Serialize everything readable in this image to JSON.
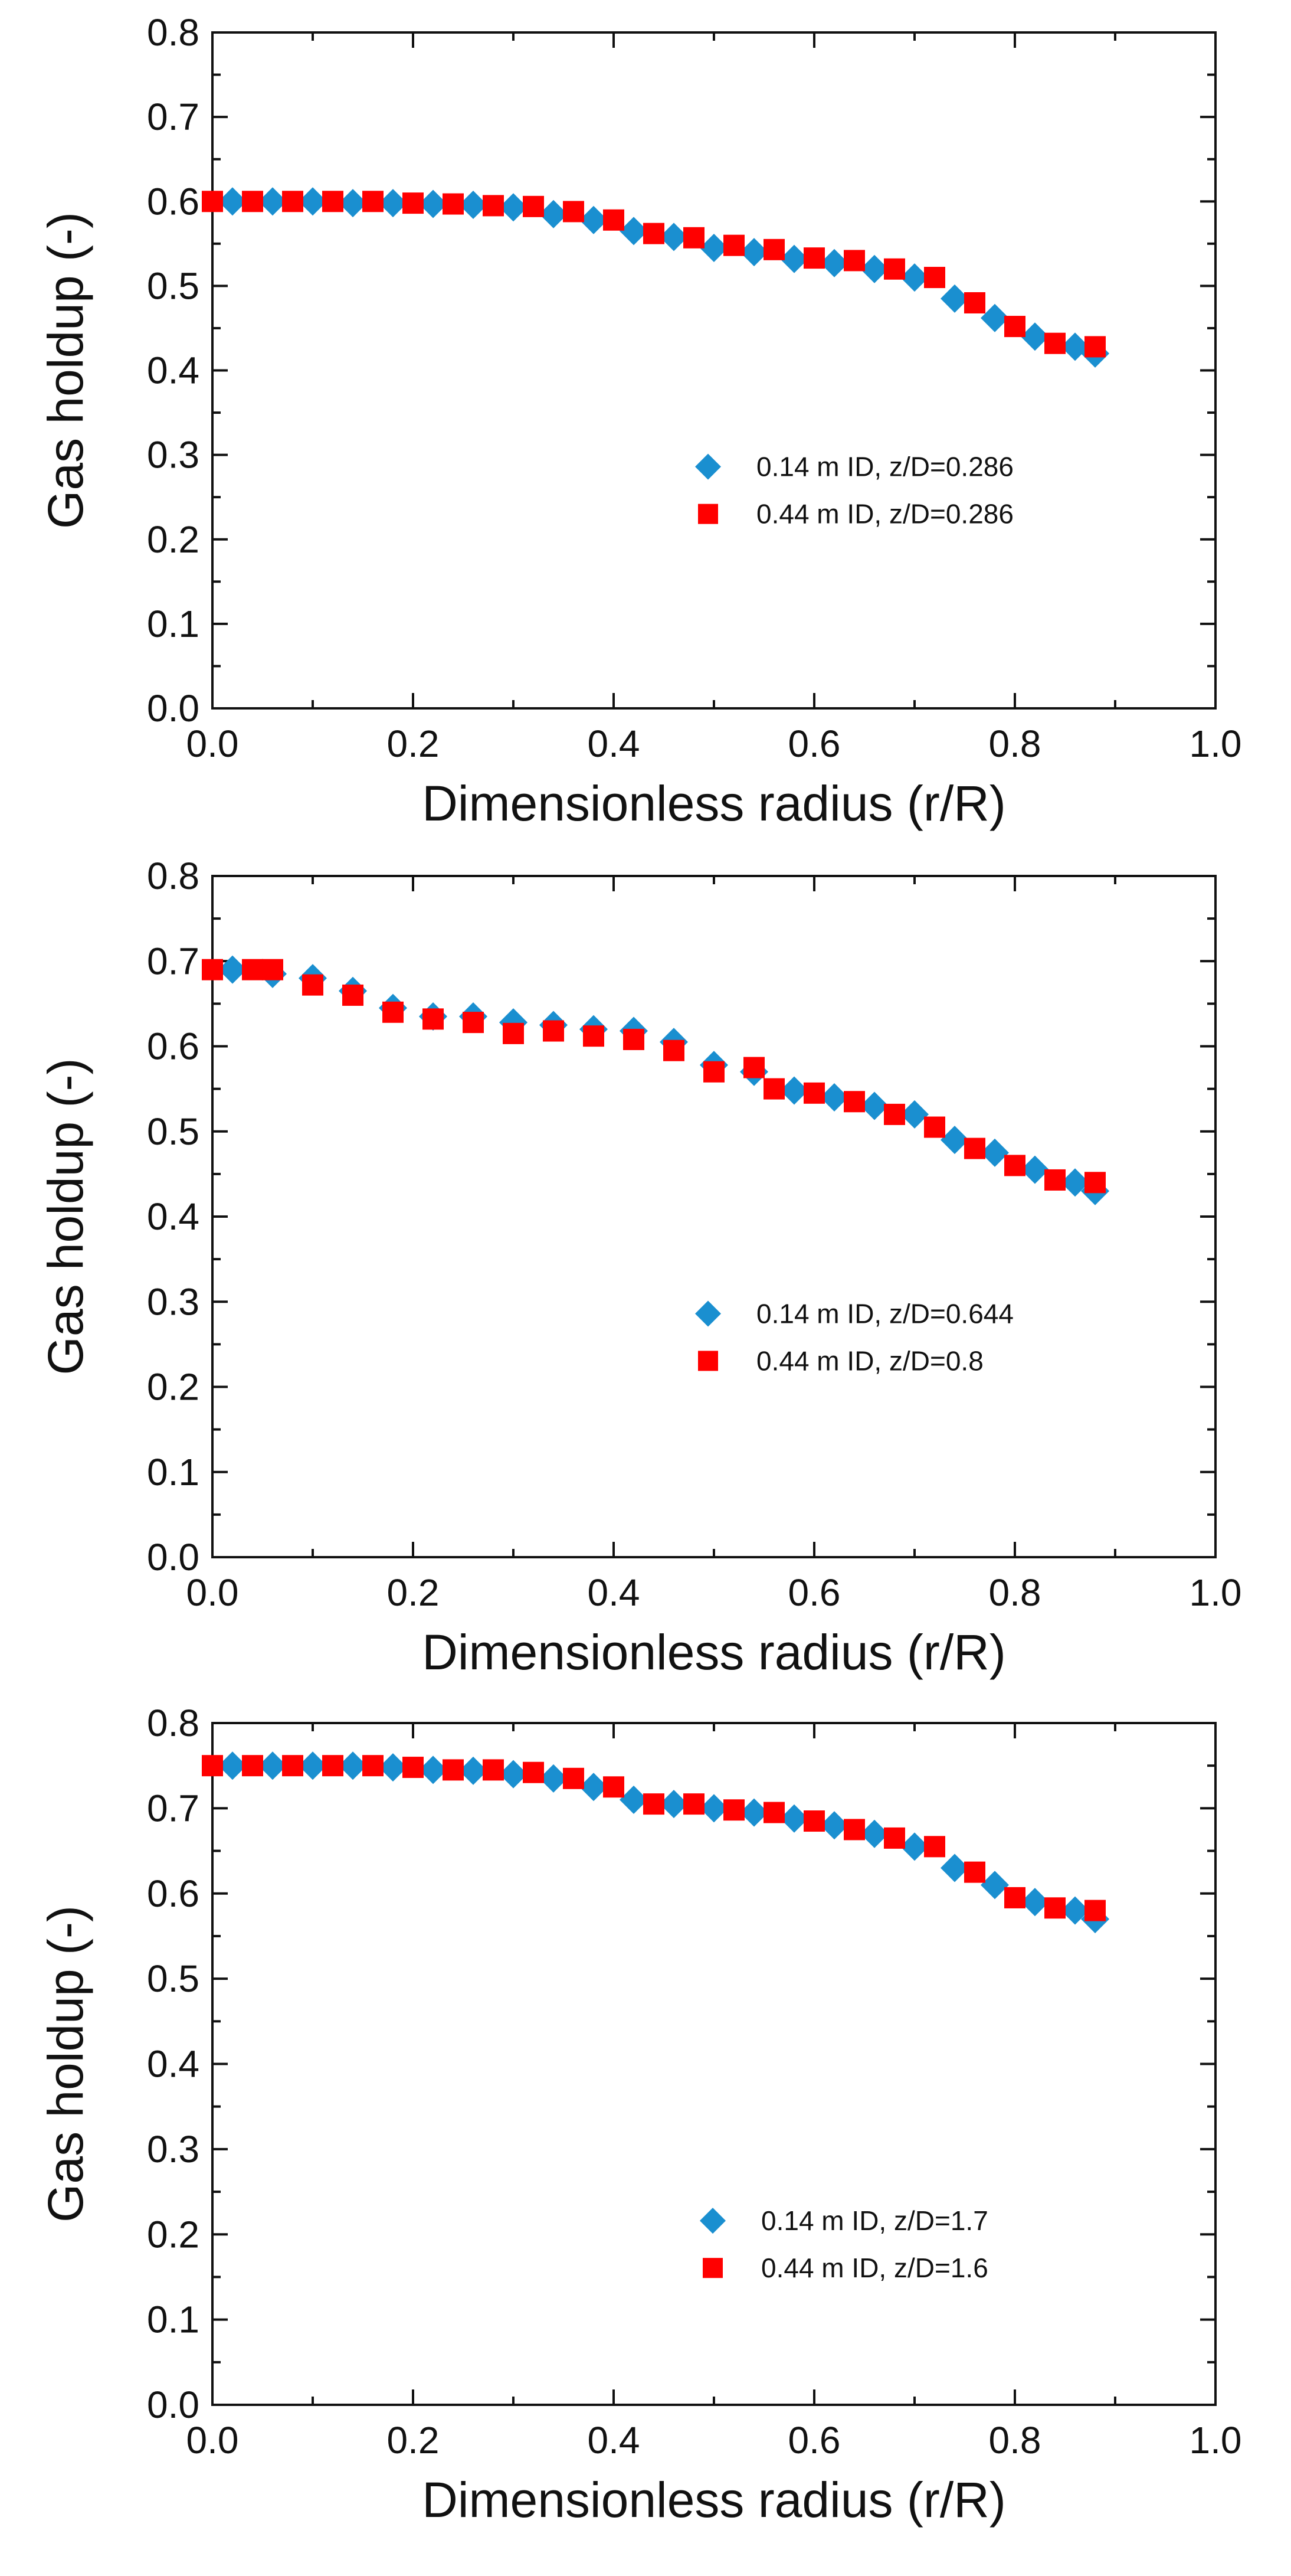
{
  "chart_data": [
    {
      "type": "scatter",
      "title": "",
      "xlabel": "Dimensionless radius (r/R)",
      "ylabel": "Gas holdup (-)",
      "xlim": [
        0.0,
        1.0
      ],
      "ylim": [
        0.0,
        0.8
      ],
      "x_ticks": [
        "0.0",
        "0.2",
        "0.4",
        "0.6",
        "0.8",
        "1.0"
      ],
      "y_ticks": [
        "0.0",
        "0.1",
        "0.2",
        "0.3",
        "0.4",
        "0.5",
        "0.6",
        "0.7",
        "0.8"
      ],
      "grid": false,
      "legend_position": "right-center",
      "series": [
        {
          "name": "0.14 m ID, z/D=0.286",
          "marker": "diamond",
          "color": "#1a8fd0",
          "x": [
            0.02,
            0.06,
            0.1,
            0.14,
            0.18,
            0.22,
            0.26,
            0.3,
            0.34,
            0.38,
            0.42,
            0.46,
            0.5,
            0.54,
            0.58,
            0.62,
            0.66,
            0.7,
            0.74,
            0.78,
            0.82,
            0.86,
            0.88
          ],
          "y": [
            0.6,
            0.6,
            0.6,
            0.598,
            0.598,
            0.597,
            0.596,
            0.593,
            0.585,
            0.578,
            0.565,
            0.558,
            0.545,
            0.54,
            0.532,
            0.527,
            0.52,
            0.51,
            0.485,
            0.462,
            0.44,
            0.428,
            0.42
          ]
        },
        {
          "name": "0.44 m ID, z/D=0.286",
          "marker": "square",
          "color": "#ff0000",
          "x": [
            0.0,
            0.04,
            0.08,
            0.12,
            0.16,
            0.2,
            0.24,
            0.28,
            0.32,
            0.36,
            0.4,
            0.44,
            0.48,
            0.52,
            0.56,
            0.6,
            0.64,
            0.68,
            0.72,
            0.76,
            0.8,
            0.84,
            0.88
          ],
          "y": [
            0.6,
            0.6,
            0.6,
            0.6,
            0.6,
            0.598,
            0.597,
            0.595,
            0.594,
            0.588,
            0.578,
            0.562,
            0.557,
            0.548,
            0.543,
            0.533,
            0.53,
            0.52,
            0.51,
            0.48,
            0.452,
            0.432,
            0.428
          ]
        }
      ]
    },
    {
      "type": "scatter",
      "title": "",
      "xlabel": "Dimensionless radius (r/R)",
      "ylabel": "Gas holdup (-)",
      "xlim": [
        0.0,
        1.0
      ],
      "ylim": [
        0.0,
        0.8
      ],
      "x_ticks": [
        "0.0",
        "0.2",
        "0.4",
        "0.6",
        "0.8",
        "1.0"
      ],
      "y_ticks": [
        "0.0",
        "0.1",
        "0.2",
        "0.3",
        "0.4",
        "0.5",
        "0.6",
        "0.7",
        "0.8"
      ],
      "grid": false,
      "legend_position": "right-center",
      "series": [
        {
          "name": "0.14 m ID, z/D=0.644",
          "marker": "diamond",
          "color": "#1a8fd0",
          "x": [
            0.02,
            0.06,
            0.1,
            0.14,
            0.18,
            0.22,
            0.26,
            0.3,
            0.34,
            0.38,
            0.42,
            0.46,
            0.5,
            0.54,
            0.58,
            0.62,
            0.66,
            0.7,
            0.74,
            0.78,
            0.82,
            0.86,
            0.88
          ],
          "y": [
            0.69,
            0.685,
            0.68,
            0.665,
            0.645,
            0.635,
            0.635,
            0.628,
            0.625,
            0.62,
            0.618,
            0.605,
            0.578,
            0.57,
            0.548,
            0.54,
            0.53,
            0.52,
            0.49,
            0.475,
            0.455,
            0.44,
            0.43
          ]
        },
        {
          "name": "0.44 m ID, z/D=0.8",
          "marker": "square",
          "color": "#ff0000",
          "x": [
            0.0,
            0.04,
            0.06,
            0.1,
            0.14,
            0.18,
            0.22,
            0.26,
            0.3,
            0.34,
            0.38,
            0.42,
            0.46,
            0.5,
            0.54,
            0.56,
            0.6,
            0.64,
            0.68,
            0.72,
            0.76,
            0.8,
            0.84,
            0.88
          ],
          "y": [
            0.69,
            0.69,
            0.69,
            0.672,
            0.66,
            0.64,
            0.632,
            0.628,
            0.615,
            0.618,
            0.612,
            0.608,
            0.595,
            0.57,
            0.575,
            0.55,
            0.545,
            0.535,
            0.52,
            0.505,
            0.48,
            0.46,
            0.443,
            0.44
          ]
        }
      ]
    },
    {
      "type": "scatter",
      "title": "",
      "xlabel": "Dimensionless radius (r/R)",
      "ylabel": "Gas holdup (-)",
      "xlim": [
        0.0,
        1.0
      ],
      "ylim": [
        0.0,
        0.8
      ],
      "x_ticks": [
        "0.0",
        "0.2",
        "0.4",
        "0.6",
        "0.8",
        "1.0"
      ],
      "y_ticks": [
        "0.0",
        "0.1",
        "0.2",
        "0.3",
        "0.4",
        "0.5",
        "0.6",
        "0.7",
        "0.8"
      ],
      "grid": false,
      "legend_position": "lower-right",
      "series": [
        {
          "name": "0.14 m ID, z/D=1.7",
          "marker": "diamond",
          "color": "#1a8fd0",
          "x": [
            0.02,
            0.06,
            0.1,
            0.14,
            0.18,
            0.22,
            0.26,
            0.3,
            0.34,
            0.38,
            0.42,
            0.46,
            0.5,
            0.54,
            0.58,
            0.62,
            0.66,
            0.7,
            0.74,
            0.78,
            0.82,
            0.86,
            0.88
          ],
          "y": [
            0.75,
            0.75,
            0.75,
            0.75,
            0.748,
            0.745,
            0.744,
            0.74,
            0.735,
            0.725,
            0.71,
            0.705,
            0.7,
            0.695,
            0.688,
            0.68,
            0.67,
            0.655,
            0.63,
            0.61,
            0.59,
            0.58,
            0.57
          ]
        },
        {
          "name": "0.44 m ID, z/D=1.6",
          "marker": "square",
          "color": "#ff0000",
          "x": [
            0.0,
            0.04,
            0.08,
            0.12,
            0.16,
            0.2,
            0.24,
            0.28,
            0.32,
            0.36,
            0.4,
            0.44,
            0.48,
            0.52,
            0.56,
            0.6,
            0.64,
            0.68,
            0.72,
            0.76,
            0.8,
            0.84,
            0.88
          ],
          "y": [
            0.75,
            0.75,
            0.75,
            0.75,
            0.75,
            0.748,
            0.745,
            0.745,
            0.742,
            0.735,
            0.725,
            0.705,
            0.705,
            0.698,
            0.695,
            0.685,
            0.675,
            0.665,
            0.655,
            0.625,
            0.595,
            0.583,
            0.58
          ]
        }
      ]
    }
  ]
}
